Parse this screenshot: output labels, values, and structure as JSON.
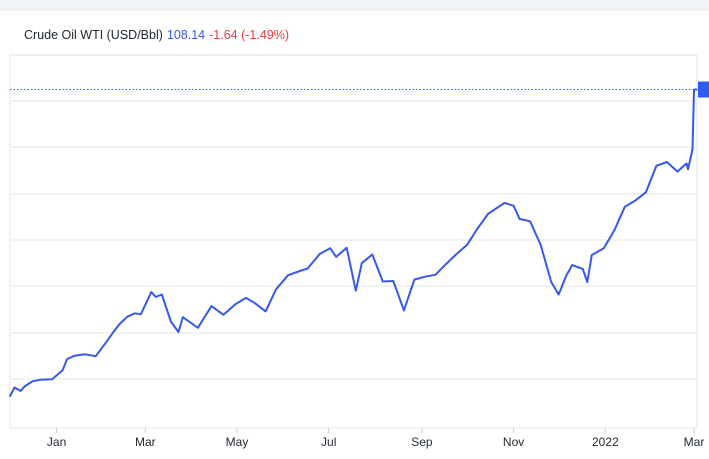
{
  "legend": {
    "symbol": "Crude Oil WTI (USD/Bbl)",
    "price": "108.14",
    "change": "-1.64 (-1.49%)"
  },
  "colors": {
    "line": "#3858e9",
    "price": "#3858e9",
    "change": "#eb3b3b",
    "grid": "#e3e6ea",
    "marker": "#2d5cf0"
  },
  "chart_data": {
    "type": "line",
    "title": "Crude Oil WTI (USD/Bbl)",
    "xlabel": "",
    "ylabel": "",
    "x_tick_labels": [
      "Jan",
      "Mar",
      "May",
      "Jul",
      "Sep",
      "Nov",
      "2022",
      "Mar"
    ],
    "x_range": [
      "2020-12-01",
      "2022-03-03"
    ],
    "y_tick_labels": [],
    "grid": "horizontal",
    "series": [
      {
        "name": "Crude Oil WTI",
        "points": [
          [
            "2020-12-01",
            44.5
          ],
          [
            "2020-12-04",
            46.3
          ],
          [
            "2020-12-08",
            45.6
          ],
          [
            "2020-12-11",
            46.6
          ],
          [
            "2020-12-16",
            47.6
          ],
          [
            "2020-12-21",
            47.9
          ],
          [
            "2020-12-29",
            48.0
          ],
          [
            "2021-01-05",
            49.9
          ],
          [
            "2021-01-08",
            52.2
          ],
          [
            "2021-01-13",
            52.9
          ],
          [
            "2021-01-20",
            53.2
          ],
          [
            "2021-01-27",
            52.8
          ],
          [
            "2021-02-03",
            55.7
          ],
          [
            "2021-02-08",
            57.9
          ],
          [
            "2021-02-12",
            59.5
          ],
          [
            "2021-02-17",
            61.0
          ],
          [
            "2021-02-22",
            61.7
          ],
          [
            "2021-02-26",
            61.5
          ],
          [
            "2021-03-05",
            66.1
          ],
          [
            "2021-03-08",
            65.1
          ],
          [
            "2021-03-12",
            65.6
          ],
          [
            "2021-03-18",
            60.0
          ],
          [
            "2021-03-23",
            57.8
          ],
          [
            "2021-03-26",
            60.9
          ],
          [
            "2021-04-05",
            58.7
          ],
          [
            "2021-04-14",
            63.2
          ],
          [
            "2021-04-22",
            61.4
          ],
          [
            "2021-04-30",
            63.6
          ],
          [
            "2021-05-07",
            64.9
          ],
          [
            "2021-05-13",
            63.8
          ],
          [
            "2021-05-20",
            62.1
          ],
          [
            "2021-05-27",
            66.7
          ],
          [
            "2021-06-04",
            69.6
          ],
          [
            "2021-06-10",
            70.3
          ],
          [
            "2021-06-17",
            71.0
          ],
          [
            "2021-06-25",
            74.0
          ],
          [
            "2021-07-02",
            75.2
          ],
          [
            "2021-07-06",
            73.4
          ],
          [
            "2021-07-13",
            75.3
          ],
          [
            "2021-07-19",
            66.4
          ],
          [
            "2021-07-23",
            72.1
          ],
          [
            "2021-07-30",
            73.9
          ],
          [
            "2021-08-06",
            68.3
          ],
          [
            "2021-08-13",
            68.4
          ],
          [
            "2021-08-20",
            62.3
          ],
          [
            "2021-08-27",
            68.7
          ],
          [
            "2021-09-03",
            69.3
          ],
          [
            "2021-09-10",
            69.7
          ],
          [
            "2021-09-17",
            71.9
          ],
          [
            "2021-09-24",
            74.0
          ],
          [
            "2021-10-01",
            75.9
          ],
          [
            "2021-10-08",
            79.3
          ],
          [
            "2021-10-15",
            82.3
          ],
          [
            "2021-10-22",
            83.8
          ],
          [
            "2021-10-26",
            84.6
          ],
          [
            "2021-11-01",
            84.0
          ],
          [
            "2021-11-05",
            81.3
          ],
          [
            "2021-11-12",
            80.8
          ],
          [
            "2021-11-19",
            75.9
          ],
          [
            "2021-11-26",
            68.2
          ],
          [
            "2021-12-01",
            65.6
          ],
          [
            "2021-12-06",
            69.5
          ],
          [
            "2021-12-10",
            71.7
          ],
          [
            "2021-12-17",
            70.9
          ],
          [
            "2021-12-20",
            68.2
          ],
          [
            "2021-12-23",
            73.8
          ],
          [
            "2021-12-31",
            75.2
          ],
          [
            "2022-01-07",
            78.9
          ],
          [
            "2022-01-14",
            83.8
          ],
          [
            "2022-01-21",
            85.1
          ],
          [
            "2022-01-28",
            86.8
          ],
          [
            "2022-02-04",
            92.3
          ],
          [
            "2022-02-11",
            93.1
          ],
          [
            "2022-02-18",
            91.1
          ],
          [
            "2022-02-24",
            92.8
          ],
          [
            "2022-02-25",
            91.6
          ],
          [
            "2022-02-28",
            95.7
          ],
          [
            "2022-03-01",
            108.1
          ],
          [
            "2022-03-02",
            108.14
          ],
          [
            "2022-03-03",
            108.14
          ]
        ]
      }
    ]
  }
}
